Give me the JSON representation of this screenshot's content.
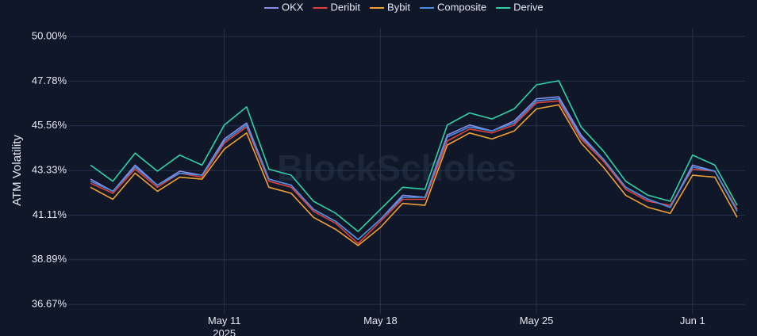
{
  "chart_data": {
    "type": "line",
    "y_label": "ATM Volatility",
    "watermark": "BlockScholes",
    "x": [
      "2025-05-05",
      "2025-05-06",
      "2025-05-07",
      "2025-05-08",
      "2025-05-09",
      "2025-05-10",
      "2025-05-11",
      "2025-05-12",
      "2025-05-13",
      "2025-05-14",
      "2025-05-15",
      "2025-05-16",
      "2025-05-17",
      "2025-05-18",
      "2025-05-19",
      "2025-05-20",
      "2025-05-21",
      "2025-05-22",
      "2025-05-23",
      "2025-05-24",
      "2025-05-25",
      "2025-05-26",
      "2025-05-27",
      "2025-05-28",
      "2025-05-29",
      "2025-05-30",
      "2025-05-31",
      "2025-06-01",
      "2025-06-02",
      "2025-06-03"
    ],
    "series": [
      {
        "name": "OKX",
        "color": "#8a8ee8",
        "values": [
          42.9,
          42.3,
          43.6,
          42.6,
          43.3,
          43.1,
          44.9,
          45.7,
          42.9,
          42.6,
          41.4,
          40.8,
          39.9,
          40.9,
          42.1,
          42.0,
          45.1,
          45.6,
          45.3,
          45.8,
          46.9,
          47.0,
          45.1,
          43.9,
          42.5,
          41.9,
          41.5,
          43.6,
          43.3,
          41.4
        ]
      },
      {
        "name": "Deribit",
        "color": "#e0413b",
        "values": [
          42.7,
          42.2,
          43.4,
          42.5,
          43.2,
          43.0,
          44.7,
          45.5,
          42.8,
          42.5,
          41.3,
          40.7,
          39.7,
          40.8,
          41.9,
          41.9,
          44.8,
          45.4,
          45.2,
          45.6,
          46.7,
          46.8,
          44.9,
          43.8,
          42.4,
          41.8,
          41.6,
          43.4,
          43.3,
          41.4
        ]
      },
      {
        "name": "Bybit",
        "color": "#f0a030",
        "values": [
          42.5,
          41.9,
          43.2,
          42.3,
          43.0,
          42.9,
          44.4,
          45.2,
          42.5,
          42.2,
          41.0,
          40.4,
          39.6,
          40.5,
          41.7,
          41.6,
          44.6,
          45.2,
          44.9,
          45.3,
          46.4,
          46.6,
          44.7,
          43.5,
          42.1,
          41.5,
          41.2,
          43.1,
          43.0,
          41.0
        ]
      },
      {
        "name": "Composite",
        "color": "#4a90e2",
        "values": [
          42.8,
          42.3,
          43.5,
          42.6,
          43.2,
          43.1,
          44.8,
          45.6,
          42.9,
          42.6,
          41.4,
          40.8,
          39.9,
          40.9,
          42.0,
          42.0,
          45.0,
          45.5,
          45.3,
          45.7,
          46.8,
          46.9,
          45.0,
          43.9,
          42.5,
          41.9,
          41.5,
          43.5,
          43.3,
          41.3
        ]
      },
      {
        "name": "Derive",
        "color": "#2ed3a5",
        "values": [
          43.6,
          42.8,
          44.2,
          43.3,
          44.1,
          43.6,
          45.6,
          46.5,
          43.4,
          43.1,
          41.8,
          41.2,
          40.3,
          41.4,
          42.5,
          42.4,
          45.6,
          46.2,
          45.9,
          46.4,
          47.6,
          47.8,
          45.5,
          44.3,
          42.8,
          42.1,
          41.8,
          44.1,
          43.6,
          41.6
        ]
      }
    ],
    "xlim": [
      "2025-05-04",
      "2025-06-03"
    ],
    "xticks": [
      {
        "value": "2025-05-11",
        "label": "May 11\n2025"
      },
      {
        "value": "2025-05-18",
        "label": "May 18"
      },
      {
        "value": "2025-05-25",
        "label": "May 25"
      },
      {
        "value": "2025-06-01",
        "label": "Jun 1"
      }
    ],
    "ylim": [
      36.2,
      50.4
    ],
    "yticks": [
      {
        "value": 36.67,
        "label": "36.67%"
      },
      {
        "value": 38.89,
        "label": "38.89%"
      },
      {
        "value": 41.11,
        "label": "41.11%"
      },
      {
        "value": 43.33,
        "label": "43.33%"
      },
      {
        "value": 45.56,
        "label": "45.56%"
      },
      {
        "value": 47.78,
        "label": "47.78%"
      },
      {
        "value": 50.0,
        "label": "50.00%"
      }
    ],
    "grid": true
  }
}
